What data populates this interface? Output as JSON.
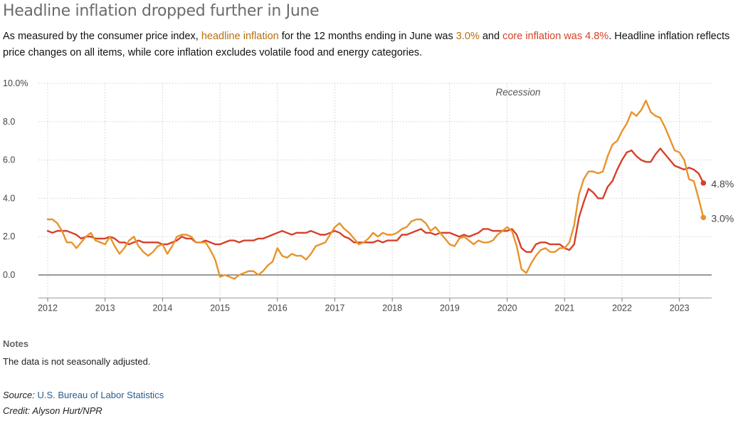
{
  "title": "Headline inflation dropped further in June",
  "subtitle": {
    "part1": "As measured by the consumer price index, ",
    "headline_link": "headline inflation",
    "part2": " for the 12 months ending in June was ",
    "headline_value": "3.0%",
    "part3": " and ",
    "core_link": "core inflation was 4.8%",
    "part4": ". Headline inflation reflects price changes on all items, while core inflation excludes volatile food and energy categories."
  },
  "notes": {
    "heading": "Notes",
    "text": "The data is not seasonally adjusted."
  },
  "source": {
    "label": "Source:",
    "link": "U.S. Bureau of Labor Statistics"
  },
  "credit": "Credit: Alyson Hurt/NPR",
  "colors": {
    "headline": "#e8932b",
    "core": "#d6402a",
    "headline_text": "#b5700f",
    "core_text": "#d34328"
  },
  "chart_data": {
    "type": "line",
    "ylim": [
      -1.2,
      10
    ],
    "yticks": [
      "10.0%",
      "8.0",
      "6.0",
      "4.0",
      "2.0",
      "0.0"
    ],
    "ytick_values": [
      10,
      8,
      6,
      4,
      2,
      0
    ],
    "xticks": [
      "2012",
      "2013",
      "2014",
      "2015",
      "2016",
      "2017",
      "2018",
      "2019",
      "2020",
      "2021",
      "2022",
      "2023"
    ],
    "xlim": [
      2012,
      2023.6
    ],
    "annotation": "Recession",
    "series": [
      {
        "key": "headline",
        "start": "2012-01",
        "end_label": "3.0%",
        "values": [
          2.9,
          2.9,
          2.7,
          2.3,
          1.7,
          1.7,
          1.4,
          1.7,
          2.0,
          2.2,
          1.8,
          1.7,
          1.6,
          2.0,
          1.5,
          1.1,
          1.4,
          1.8,
          2.0,
          1.5,
          1.2,
          1.0,
          1.2,
          1.5,
          1.6,
          1.1,
          1.5,
          2.0,
          2.1,
          2.1,
          2.0,
          1.7,
          1.7,
          1.7,
          1.3,
          0.8,
          -0.1,
          0.0,
          -0.1,
          -0.2,
          0.0,
          0.1,
          0.2,
          0.2,
          0.0,
          0.2,
          0.5,
          0.7,
          1.4,
          1.0,
          0.9,
          1.1,
          1.0,
          1.0,
          0.8,
          1.1,
          1.5,
          1.6,
          1.7,
          2.1,
          2.5,
          2.7,
          2.4,
          2.2,
          1.9,
          1.6,
          1.7,
          1.9,
          2.2,
          2.0,
          2.2,
          2.1,
          2.1,
          2.2,
          2.4,
          2.5,
          2.8,
          2.9,
          2.9,
          2.7,
          2.3,
          2.5,
          2.2,
          1.9,
          1.6,
          1.5,
          1.9,
          2.0,
          1.8,
          1.6,
          1.8,
          1.7,
          1.7,
          1.8,
          2.1,
          2.3,
          2.5,
          2.3,
          1.5,
          0.3,
          0.1,
          0.6,
          1.0,
          1.3,
          1.4,
          1.2,
          1.2,
          1.4,
          1.4,
          1.7,
          2.6,
          4.2,
          5.0,
          5.4,
          5.4,
          5.3,
          5.4,
          6.2,
          6.8,
          7.0,
          7.5,
          7.9,
          8.5,
          8.3,
          8.6,
          9.1,
          8.5,
          8.3,
          8.2,
          7.7,
          7.1,
          6.5,
          6.4,
          6.0,
          5.0,
          4.9,
          4.0,
          3.0
        ]
      },
      {
        "key": "core",
        "start": "2012-01",
        "end_label": "4.8%",
        "values": [
          2.3,
          2.2,
          2.3,
          2.3,
          2.3,
          2.2,
          2.1,
          1.9,
          2.0,
          2.0,
          1.9,
          1.9,
          1.9,
          2.0,
          1.9,
          1.7,
          1.7,
          1.6,
          1.7,
          1.8,
          1.7,
          1.7,
          1.7,
          1.7,
          1.6,
          1.6,
          1.7,
          1.8,
          2.0,
          1.9,
          1.9,
          1.7,
          1.7,
          1.8,
          1.7,
          1.6,
          1.6,
          1.7,
          1.8,
          1.8,
          1.7,
          1.8,
          1.8,
          1.8,
          1.9,
          1.9,
          2.0,
          2.1,
          2.2,
          2.3,
          2.2,
          2.1,
          2.2,
          2.2,
          2.2,
          2.3,
          2.2,
          2.1,
          2.1,
          2.2,
          2.3,
          2.2,
          2.0,
          1.9,
          1.7,
          1.7,
          1.7,
          1.7,
          1.7,
          1.8,
          1.7,
          1.8,
          1.8,
          1.8,
          2.1,
          2.1,
          2.2,
          2.3,
          2.4,
          2.2,
          2.2,
          2.1,
          2.2,
          2.2,
          2.2,
          2.1,
          2.0,
          2.1,
          2.0,
          2.1,
          2.2,
          2.4,
          2.4,
          2.3,
          2.3,
          2.3,
          2.3,
          2.4,
          2.1,
          1.4,
          1.2,
          1.2,
          1.6,
          1.7,
          1.7,
          1.6,
          1.6,
          1.6,
          1.4,
          1.3,
          1.6,
          3.0,
          3.8,
          4.5,
          4.3,
          4.0,
          4.0,
          4.6,
          4.9,
          5.5,
          6.0,
          6.4,
          6.5,
          6.2,
          6.0,
          5.9,
          5.9,
          6.3,
          6.6,
          6.3,
          6.0,
          5.7,
          5.6,
          5.5,
          5.6,
          5.5,
          5.3,
          4.8
        ]
      }
    ]
  }
}
